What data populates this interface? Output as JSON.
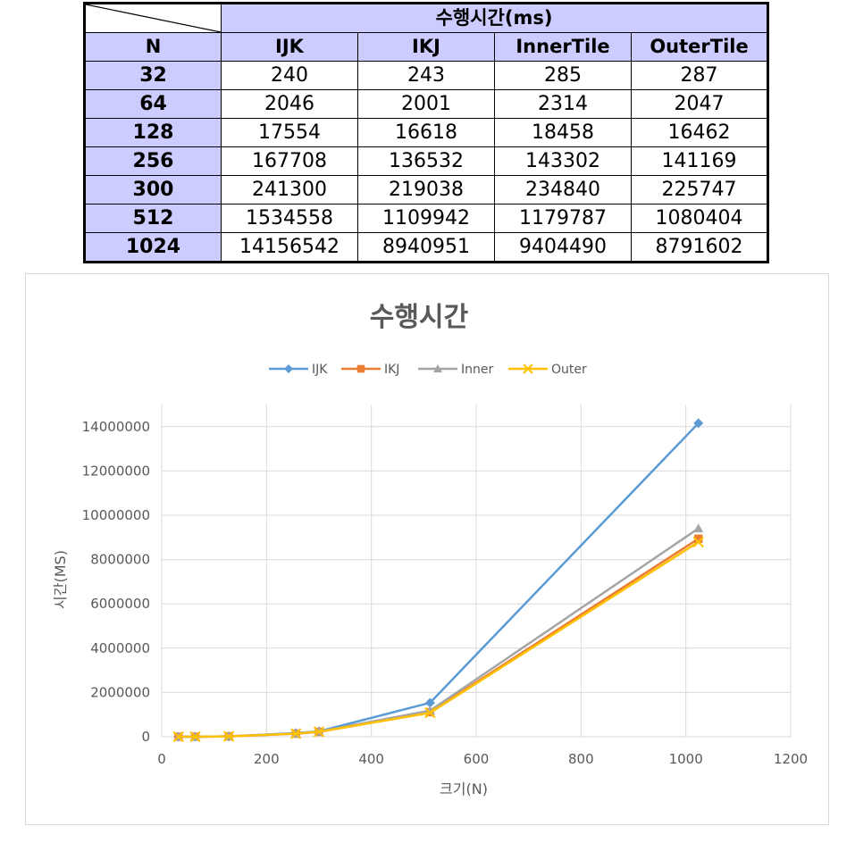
{
  "table": {
    "corner": "",
    "group_header": "수행시간(ms)",
    "columns": [
      "N",
      "IJK",
      "IKJ",
      "InnerTile",
      "OuterTile"
    ],
    "rows": [
      [
        "32",
        "240",
        "243",
        "285",
        "287"
      ],
      [
        "64",
        "2046",
        "2001",
        "2314",
        "2047"
      ],
      [
        "128",
        "17554",
        "16618",
        "18458",
        "16462"
      ],
      [
        "256",
        "167708",
        "136532",
        "143302",
        "141169"
      ],
      [
        "300",
        "241300",
        "219038",
        "234840",
        "225747"
      ],
      [
        "512",
        "1534558",
        "1109942",
        "1179787",
        "1080404"
      ],
      [
        "1024",
        "14156542",
        "8940951",
        "9404490",
        "8791602"
      ]
    ]
  },
  "chart_data": {
    "type": "line",
    "title": "수행시간",
    "xlabel": "크기(N)",
    "ylabel": "시간(MS)",
    "xlim": [
      0,
      1200
    ],
    "ylim": [
      0,
      15000000
    ],
    "x_ticks": [
      0,
      200,
      400,
      600,
      800,
      1000,
      1200
    ],
    "y_ticks": [
      0,
      2000000,
      4000000,
      6000000,
      8000000,
      10000000,
      12000000,
      14000000
    ],
    "x_tick_labels": [
      "0",
      "200",
      "400",
      "600",
      "800",
      "1000",
      "1200"
    ],
    "y_tick_labels": [
      "0",
      "2000000",
      "4000000",
      "6000000",
      "8000000",
      "10000000",
      "12000000",
      "14000000"
    ],
    "grid": "vertical and horizontal",
    "legend_position": "top",
    "x": [
      32,
      64,
      128,
      256,
      300,
      512,
      1024
    ],
    "series": [
      {
        "name": "IJK",
        "color": "#5b9bd5",
        "marker": "diamond",
        "values": [
          240,
          2046,
          17554,
          167708,
          241300,
          1534558,
          14156542
        ]
      },
      {
        "name": "IKJ",
        "color": "#ed7d31",
        "marker": "square",
        "values": [
          243,
          2001,
          16618,
          136532,
          219038,
          1109942,
          8940951
        ]
      },
      {
        "name": "Inner",
        "color": "#a5a5a5",
        "marker": "triangle",
        "values": [
          285,
          2314,
          18458,
          143302,
          234840,
          1179787,
          9404490
        ]
      },
      {
        "name": "Outer",
        "color": "#ffc000",
        "marker": "x",
        "values": [
          287,
          2047,
          16462,
          141169,
          225747,
          1080404,
          8791602
        ]
      }
    ]
  }
}
